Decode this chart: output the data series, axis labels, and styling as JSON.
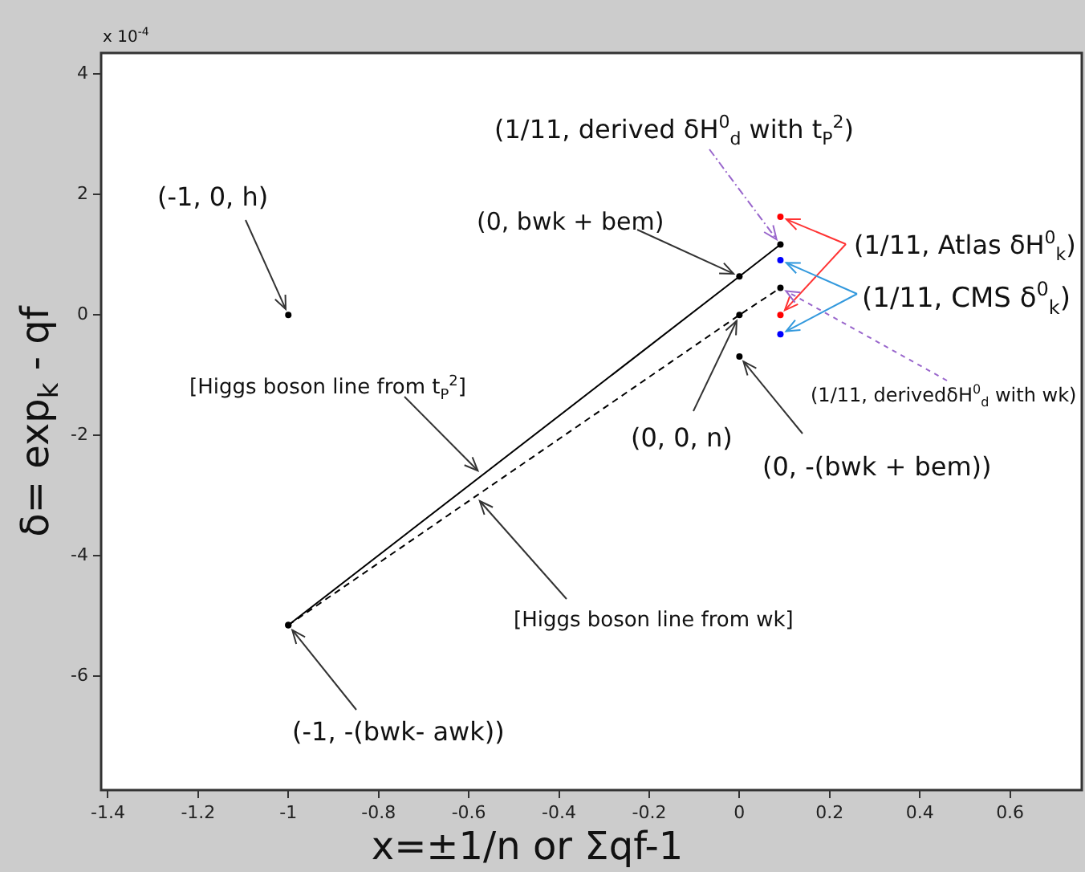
{
  "chart_data": {
    "type": "scatter",
    "xlabel": "x=±1/n or Σqf-1",
    "ylabel": "δ= exp$_{k}$ - qf",
    "xlim": [
      -1.415,
      0.759
    ],
    "xticks": [
      -1.4,
      -1.2,
      -1,
      -0.8,
      -0.6,
      -0.4,
      -0.2,
      0,
      0.2,
      0.4,
      0.6
    ],
    "ylim": [
      -7.89,
      4.35
    ],
    "yticks": [
      -6,
      -4,
      -2,
      0,
      2,
      4
    ],
    "marker": "circle",
    "series": [
      {
        "type": "line",
        "line_style": "solid",
        "color": "#000000",
        "x": [
          -1,
          0,
          0.0909
        ],
        "values": [
          -5.15,
          0.64,
          1.17
        ]
      },
      {
        "type": "line",
        "line_style": "dashed",
        "color": "#000000",
        "x": [
          -1,
          0,
          0.0909
        ],
        "values": [
          -5.15,
          0,
          0.45
        ]
      },
      {
        "color": "#000000",
        "x": [
          -1,
          0
        ],
        "values": [
          0,
          -0.69
        ]
      },
      {
        "color": "#ff0000",
        "x": [
          0.0909,
          0.0909
        ],
        "values": [
          1.63,
          0
        ]
      },
      {
        "color": "#0000ff",
        "x": [
          0.0909,
          0.0909
        ],
        "values": [
          0.91,
          -0.32
        ]
      }
    ],
    "annotations": [
      "x 10$^{-4}$",
      {
        "text": "(1/11, derived δH$^{0}$$_{d}$ with t$_{P}$$^{2}$)",
        "x": 0.0909,
        "y": 1.17
      },
      {
        "text": "(-1, 0, h)",
        "x": -1,
        "y": 0
      },
      {
        "text": "(0, bwk + bem)",
        "x": 0,
        "y": 0.64
      },
      {
        "text": "(1/11, Atlas δH$^{0}$$_{k}$)",
        "x": 0.0909,
        "y": 1.63
      },
      {
        "text": "(1/11, CMS δ$^{0}$$_{k}$)",
        "x": 0.0909,
        "y": 0.91
      },
      {
        "text": "[Higgs boson line from t$_{P}$$^{2}$]",
        "x": -0.57,
        "y": -2.66
      },
      {
        "text": "(1/11, derivedδH$^{0}$$_{d}$ with wk)",
        "x": 0.0909,
        "y": 0.45
      },
      {
        "text": "(0, 0, n)",
        "x": 0,
        "y": 0
      },
      {
        "text": "(0, -(bwk + bem))",
        "x": 0,
        "y": -0.69
      },
      {
        "text": "[Higgs boson line from wk]",
        "x": -0.585,
        "y": -3.01
      },
      {
        "text": "(-1, -(bwk- awk))",
        "x": -1,
        "y": -5.15
      }
    ]
  }
}
